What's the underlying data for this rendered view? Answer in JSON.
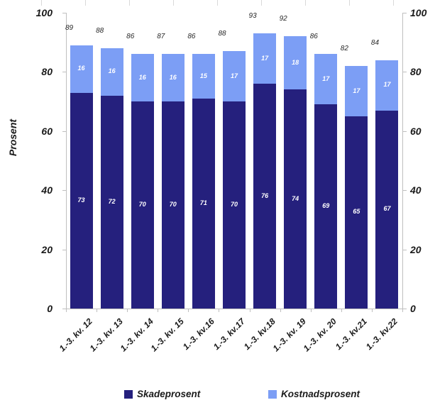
{
  "chart_data": {
    "type": "bar",
    "stacked": true,
    "title": "",
    "xlabel": "",
    "ylabel": "Prosent",
    "ylim": [
      0,
      100
    ],
    "yticks": [
      0,
      20,
      40,
      60,
      80,
      100
    ],
    "grid": false,
    "legend_position": "bottom",
    "categories": [
      "1.-3. kv. 12",
      "1.-3. kv. 13",
      "1.-3. kv. 14",
      "1.-3. kv. 15",
      "1.-3. kv.16",
      "1.-3. kv.17",
      "1.-3. kv.18",
      "1.-3. kv. 19",
      "1.-3. kv. 20",
      "1.-3. kv.21",
      "1.-3. kv.22"
    ],
    "series": [
      {
        "name": "Skadeprosent",
        "color": "#25207d",
        "values": [
          73,
          72,
          70,
          70,
          71,
          70,
          76,
          74,
          69,
          65,
          67
        ]
      },
      {
        "name": "Kostnadsprosent",
        "color": "#7c9ef5",
        "values": [
          16,
          16,
          16,
          16,
          15,
          17,
          17,
          18,
          17,
          17,
          17
        ]
      }
    ],
    "totals": [
      89,
      88,
      86,
      87,
      86,
      88,
      93,
      92,
      86,
      82,
      84
    ]
  },
  "colors": {
    "axis_line": "#bfbfbf",
    "top_tick": "#d9d9d9",
    "tick_text": "#1a1a1a",
    "total_text": "#262626",
    "bar_value_text": "#ffffff",
    "background": "#ffffff"
  }
}
